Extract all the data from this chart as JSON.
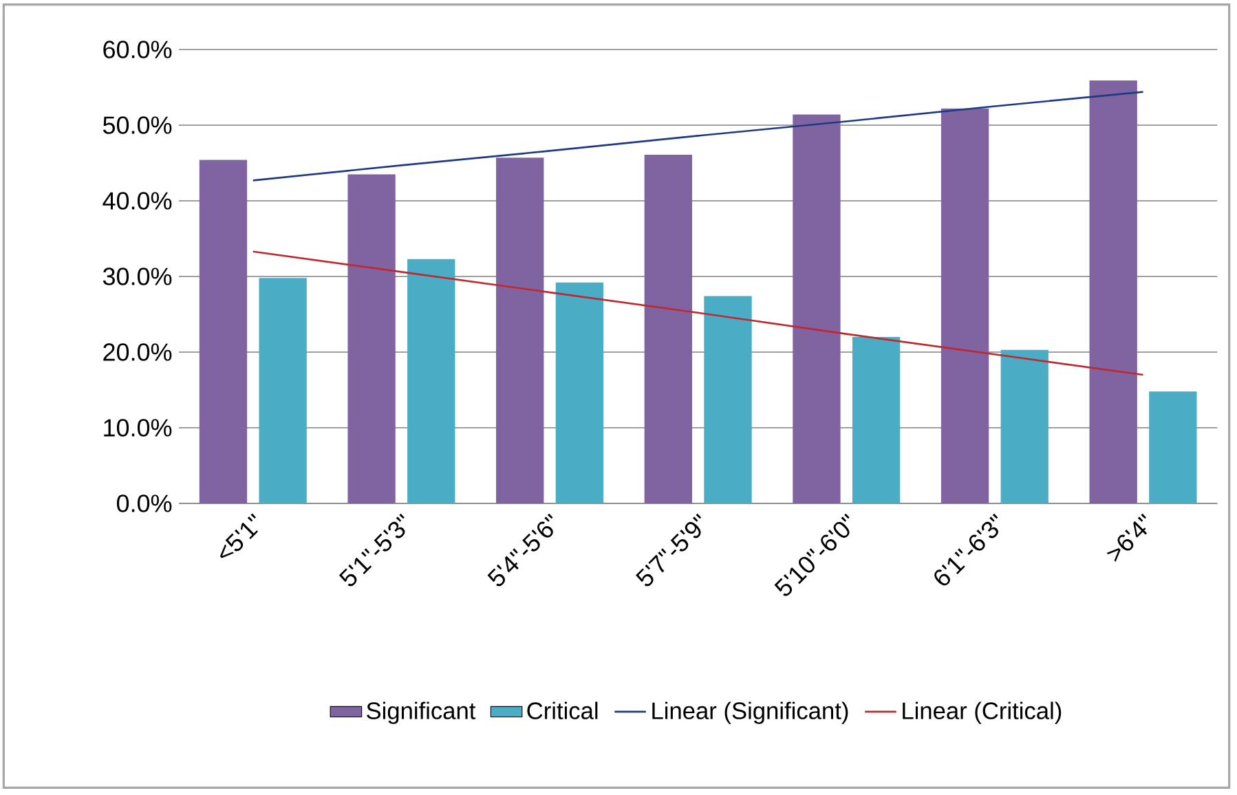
{
  "chart_data": {
    "type": "bar",
    "categories": [
      "<5'1\"",
      "5'1\"-5'3\"",
      "5'4\"-5'6\"",
      "5'7\"-5'9\"",
      "5'10\"-6'0\"",
      "6'1\"-6'3\"",
      ">6'4\""
    ],
    "series": [
      {
        "name": "Significant",
        "color": "#8064a2",
        "values": [
          45.4,
          43.5,
          45.7,
          46.1,
          51.4,
          52.2,
          55.9
        ]
      },
      {
        "name": "Critical",
        "color": "#4bacc6",
        "values": [
          29.8,
          32.3,
          29.2,
          27.4,
          22.0,
          20.3,
          14.8
        ]
      },
      {
        "name": "Linear (Significant)",
        "type": "line",
        "color": "#1f3a85",
        "values": [
          42.7,
          44.7,
          46.6,
          48.6,
          50.5,
          52.5,
          54.4
        ]
      },
      {
        "name": "Linear (Critical)",
        "type": "line",
        "color": "#c0282d",
        "values": [
          33.3,
          30.6,
          27.9,
          25.2,
          22.4,
          19.7,
          17.0
        ]
      }
    ],
    "ylim": [
      0,
      60
    ],
    "yticks": [
      {
        "value": 0,
        "label": "0.0%"
      },
      {
        "value": 10,
        "label": "10.0%"
      },
      {
        "value": 20,
        "label": "20.0%"
      },
      {
        "value": 30,
        "label": "30.0%"
      },
      {
        "value": 40,
        "label": "40.0%"
      },
      {
        "value": 50,
        "label": "50.0%"
      },
      {
        "value": 60,
        "label": "60.0%"
      }
    ],
    "grid": "y",
    "legend": "bottom"
  }
}
